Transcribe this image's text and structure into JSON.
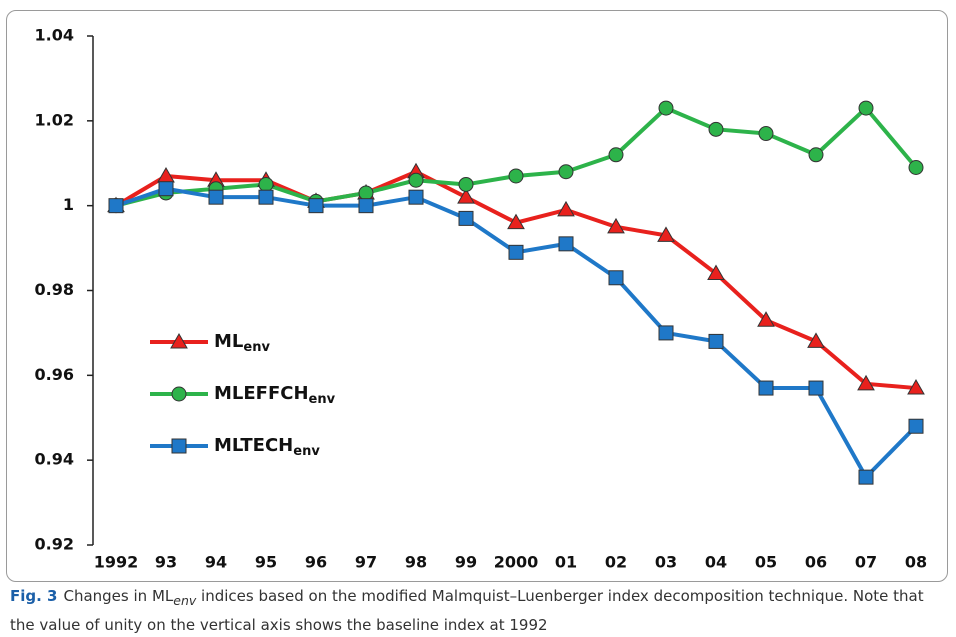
{
  "chart_data": {
    "type": "line",
    "categories": [
      "1992",
      "93",
      "94",
      "95",
      "96",
      "97",
      "98",
      "99",
      "2000",
      "01",
      "02",
      "03",
      "04",
      "05",
      "06",
      "07",
      "08"
    ],
    "series": [
      {
        "name": "ML",
        "name_subscript": "env",
        "color": "#e8211d",
        "marker": "triangle",
        "values": [
          1.0,
          1.007,
          1.006,
          1.006,
          1.001,
          1.003,
          1.008,
          1.002,
          0.996,
          0.999,
          0.995,
          0.993,
          0.984,
          0.973,
          0.968,
          0.958,
          0.957
        ]
      },
      {
        "name": "MLEFFCH",
        "name_subscript": "env",
        "color": "#2db34a",
        "marker": "circle",
        "values": [
          1.0,
          1.003,
          1.004,
          1.005,
          1.001,
          1.003,
          1.006,
          1.005,
          1.007,
          1.008,
          1.012,
          1.023,
          1.018,
          1.017,
          1.012,
          1.023,
          1.009
        ]
      },
      {
        "name": "MLTECH",
        "name_subscript": "env",
        "color": "#1f78c8",
        "marker": "square",
        "values": [
          1.0,
          1.004,
          1.002,
          1.002,
          1.0,
          1.0,
          1.002,
          0.997,
          0.989,
          0.991,
          0.983,
          0.97,
          0.968,
          0.957,
          0.957,
          0.936,
          0.948
        ]
      }
    ],
    "ylim": [
      0.92,
      1.04
    ],
    "yticks": [
      0.92,
      0.94,
      0.96,
      0.98,
      1,
      1.02,
      1.04
    ],
    "legend_position": "left"
  },
  "caption": {
    "label": "Fig. 3",
    "text_before": "Changes in ML",
    "subscript": "env",
    "text_after": "indices based on the modified Malmquist–Luenberger index decomposition technique. Note that the value of unity on the vertical axis shows the baseline index at 1992"
  }
}
